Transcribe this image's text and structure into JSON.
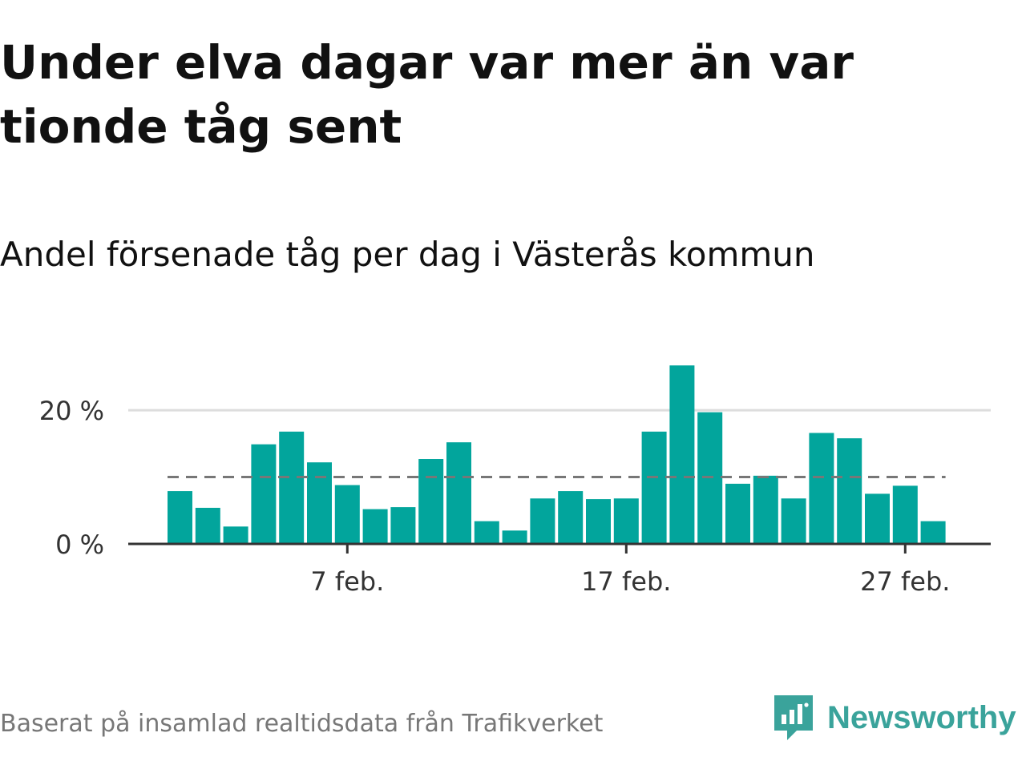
{
  "header": {
    "title": "Under elva dagar var mer än var tionde tåg sent",
    "subtitle": "Andel försenade tåg per dag i Västerås kommun"
  },
  "footer": {
    "source": "Baserat på insamlad realtidsdata från Trafikverket",
    "brand": "Newsworthy",
    "brand_icon": "newsworthy-logo-icon"
  },
  "colors": {
    "bar": "#02a59c",
    "reference_line": "#777777",
    "grid": "#dddddd",
    "baseline": "#333333",
    "brand": "#3aa39b"
  },
  "chart_data": {
    "type": "bar",
    "x": [
      "1 feb.",
      "2 feb.",
      "3 feb.",
      "4 feb.",
      "5 feb.",
      "6 feb.",
      "7 feb.",
      "8 feb.",
      "9 feb.",
      "10 feb.",
      "11 feb.",
      "12 feb.",
      "13 feb.",
      "14 feb.",
      "15 feb.",
      "16 feb.",
      "17 feb.",
      "18 feb.",
      "19 feb.",
      "20 feb.",
      "21 feb.",
      "22 feb.",
      "23 feb.",
      "24 feb.",
      "25 feb.",
      "26 feb.",
      "27 feb.",
      "28 feb."
    ],
    "values": [
      7.9,
      5.4,
      2.6,
      14.9,
      16.8,
      12.2,
      8.8,
      5.2,
      5.5,
      12.7,
      15.2,
      3.4,
      2.0,
      6.8,
      7.9,
      6.7,
      6.8,
      16.8,
      26.7,
      19.7,
      9.0,
      10.2,
      6.8,
      16.6,
      15.8,
      7.5,
      8.7,
      3.4
    ],
    "reference_line": 10,
    "ylim": [
      0,
      29
    ],
    "yticks": [
      0,
      20
    ],
    "ytick_labels": [
      "0 %",
      "20 %"
    ],
    "xtick_labels": [
      {
        "index": 6,
        "label": "7 feb."
      },
      {
        "index": 16,
        "label": "17 feb."
      },
      {
        "index": 26,
        "label": "27 feb."
      }
    ],
    "grid": true,
    "xlabel": "",
    "ylabel": ""
  }
}
